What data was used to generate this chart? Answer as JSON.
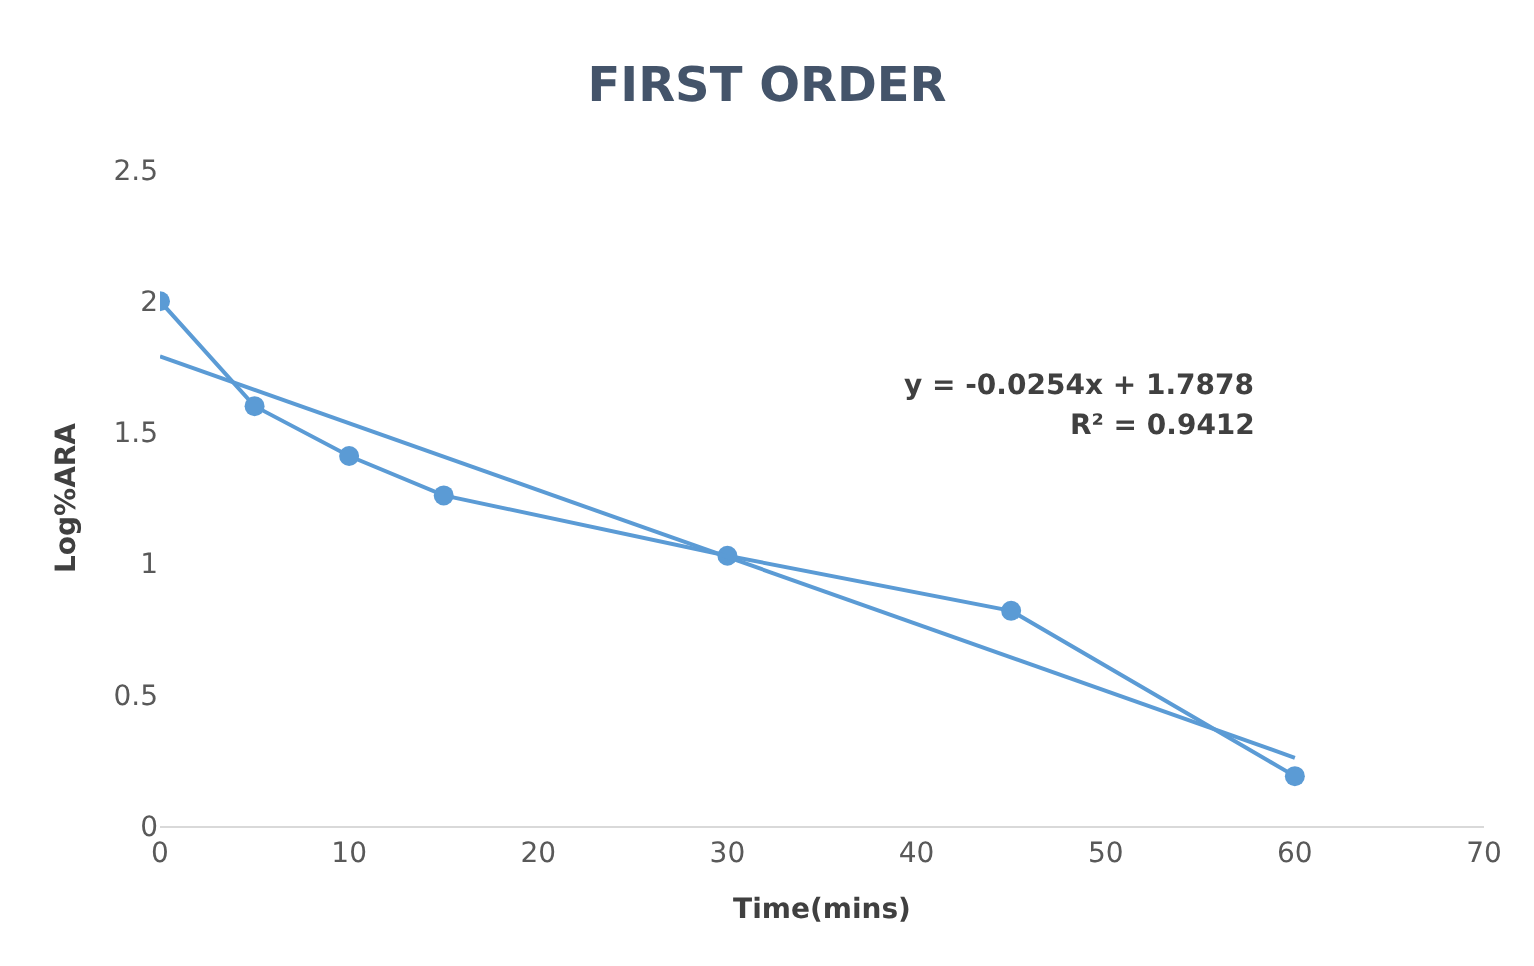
{
  "chart_data": {
    "type": "line",
    "title": "FIRST ORDER",
    "xlabel": "Time(mins)",
    "ylabel": "Log%ARA",
    "xlim": [
      0,
      70
    ],
    "xticks": [
      0,
      10,
      20,
      30,
      40,
      50,
      60,
      70
    ],
    "ylim": [
      0,
      2.5
    ],
    "yticks": [
      0,
      0.5,
      1,
      1.5,
      2,
      2.5
    ],
    "marker": "circle",
    "line_style": "solid",
    "series": [
      {
        "color": "#5b9bd5",
        "x": [
          0,
          5,
          10,
          15,
          30,
          45,
          60
        ],
        "values": [
          2.0,
          1.6,
          1.41,
          1.26,
          1.03,
          0.82,
          0.19
        ]
      },
      {
        "type": "line",
        "marker": "none",
        "color": "#5b9bd5",
        "x": [
          0,
          60
        ],
        "values": [
          1.79,
          0.26
        ]
      }
    ],
    "annotations": [
      "y = -0.0254x + 1.7878",
      "R² = 0.9412"
    ]
  }
}
